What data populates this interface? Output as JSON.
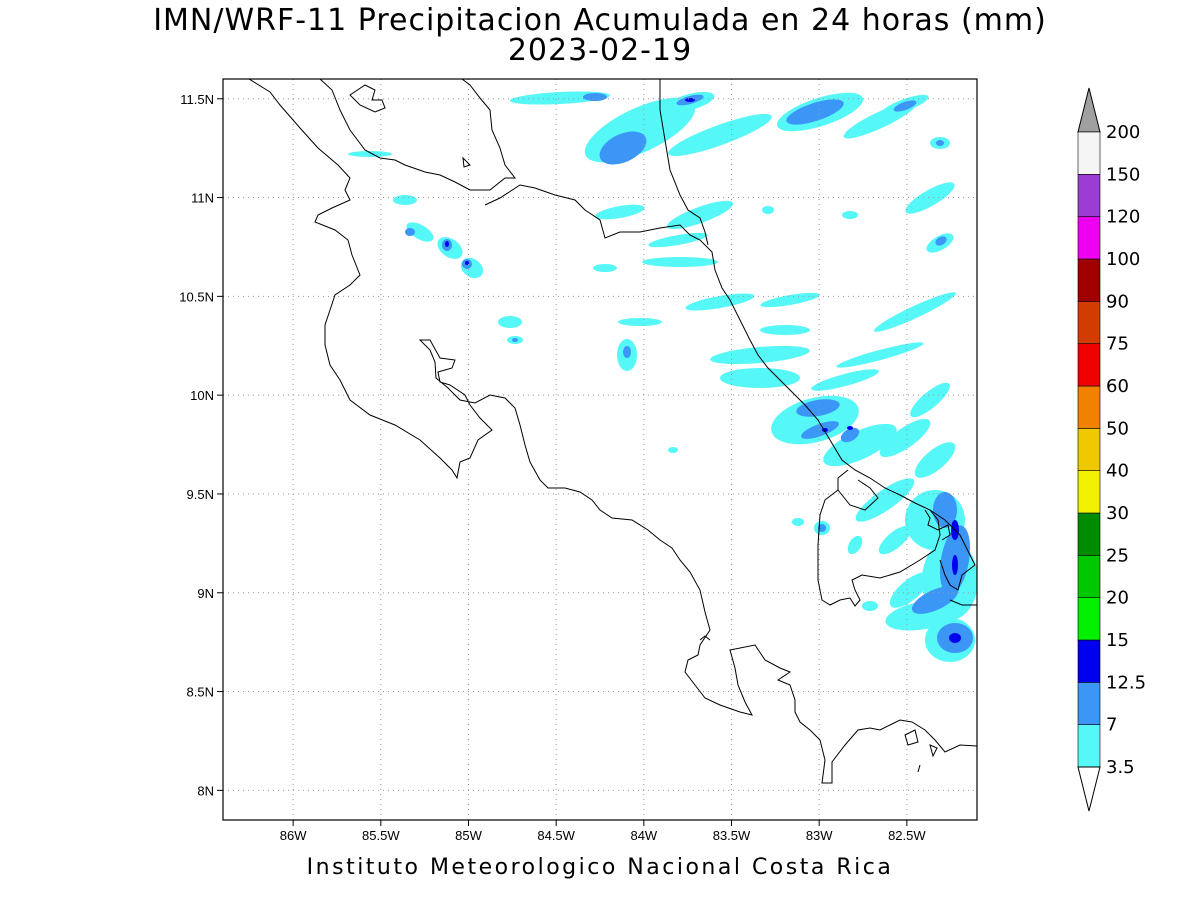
{
  "title": {
    "line1": "IMN/WRF-11 Precipitacion Acumulada en 24 horas (mm)",
    "line2": "2023-02-19"
  },
  "footer": "Instituto Meteorologico Nacional Costa Rica",
  "map": {
    "lat_ticks": [
      "11.5N",
      "11N",
      "10.5N",
      "10N",
      "9.5N",
      "9N",
      "8.5N",
      "8N"
    ],
    "lon_ticks": [
      "86W",
      "85.5W",
      "85W",
      "84.5W",
      "84W",
      "83.5W",
      "83W",
      "82.5W"
    ],
    "lat_range": [
      7.85,
      11.6
    ],
    "lon_range": [
      -86.4,
      -82.1
    ],
    "grid": "dotted",
    "coastline_color": "#000000"
  },
  "colorbar": {
    "levels": [
      "3.5",
      "7",
      "12.5",
      "15",
      "20",
      "25",
      "30",
      "40",
      "50",
      "60",
      "75",
      "90",
      "100",
      "120",
      "150",
      "200"
    ],
    "colors": [
      "#55f7f7",
      "#3c96f5",
      "#0000f0",
      "#00f000",
      "#00c800",
      "#008c00",
      "#f0f000",
      "#f0c800",
      "#f08200",
      "#f00000",
      "#d23c00",
      "#a00000",
      "#f000f0",
      "#9b3cd2",
      "#f5f5f5"
    ],
    "over_color": "#a0a0a0",
    "under_color": "#ffffff"
  }
}
